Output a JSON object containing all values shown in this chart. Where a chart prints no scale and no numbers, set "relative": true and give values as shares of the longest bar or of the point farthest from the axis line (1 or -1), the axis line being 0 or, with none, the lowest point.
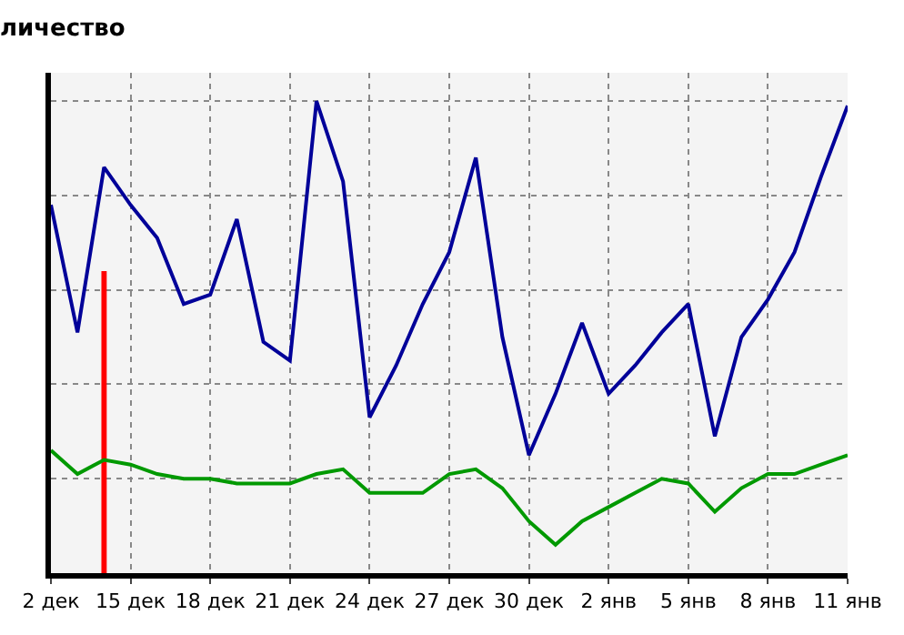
{
  "chart_data": {
    "type": "line",
    "title": "личество",
    "relative": true,
    "grid": true,
    "tick_labels": "x",
    "legend": false,
    "marker": "none",
    "line_style": "solid",
    "categories": [
      "2 дек",
      null,
      null,
      "15 дек",
      null,
      null,
      "18 дек",
      null,
      null,
      "21 дек",
      null,
      null,
      "24 дек",
      null,
      null,
      "27 дек",
      null,
      null,
      "30 дек",
      null,
      null,
      "2 янв",
      null,
      null,
      "5 янв",
      null,
      null,
      "8 янв",
      null,
      null,
      "11 янв"
    ],
    "series": [
      {
        "color": "#000099",
        "values": [
          0.78,
          0.51,
          0.86,
          0.78,
          0.71,
          0.57,
          0.59,
          0.75,
          0.49,
          0.45,
          1.0,
          0.83,
          0.33,
          0.44,
          0.57,
          0.68,
          0.88,
          0.5,
          0.25,
          0.38,
          0.53,
          0.38,
          0.44,
          0.51,
          0.57,
          0.29,
          0.5,
          0.58,
          0.68,
          0.84,
          0.99
        ]
      },
      {
        "color": "#009900",
        "values": [
          0.26,
          0.21,
          0.24,
          0.23,
          0.21,
          0.2,
          0.2,
          0.19,
          0.19,
          0.19,
          0.21,
          0.22,
          0.17,
          0.17,
          0.17,
          0.21,
          0.22,
          0.18,
          0.11,
          0.06,
          0.11,
          0.14,
          0.17,
          0.2,
          0.19,
          0.13,
          0.18,
          0.21,
          0.21,
          0.23,
          0.25
        ]
      },
      {
        "type": "bar",
        "color": "#ff0000",
        "values": [
          null,
          null,
          0.64,
          null,
          null,
          null,
          null,
          null,
          null,
          null,
          null,
          null,
          null,
          null,
          null,
          null,
          null,
          null,
          null,
          null,
          null,
          null,
          null,
          null,
          null,
          null,
          null,
          null,
          null,
          null,
          null
        ]
      }
    ]
  }
}
